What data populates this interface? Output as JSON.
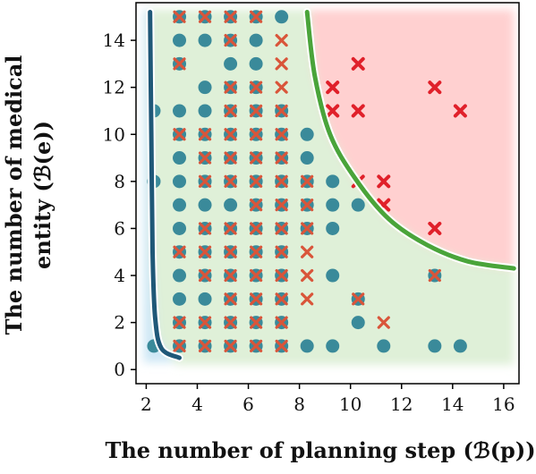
{
  "chart_data": {
    "type": "scatter",
    "xlabel": "The number of planning step (ℬ(p))",
    "ylabel_lines": [
      "The number of medical",
      "entity (ℬ(e))"
    ],
    "xlim": [
      1.6,
      16.6
    ],
    "ylim": [
      -0.6,
      15.6
    ],
    "x_ticks": [
      "2",
      "4",
      "6",
      "8",
      "10",
      "12",
      "14",
      "16"
    ],
    "y_ticks": [
      "0",
      "2",
      "4",
      "6",
      "8",
      "10",
      "12",
      "14"
    ],
    "grid": false,
    "legend": "none",
    "colors": {
      "circle": "#3a8a9a",
      "cross_light": "#d9553a",
      "cross_strong": "#e0202a",
      "region_green": "#dff0d8",
      "region_red": "#ffd0d0",
      "region_blue": "#cde7f5",
      "curve_green": "#4aa43a",
      "curve_blue": "#1f5878"
    },
    "regions": [
      {
        "color_key": "region_blue",
        "points": [
          [
            1.9,
            0.3
          ],
          [
            1.9,
            15.3
          ],
          [
            2.15,
            15.3
          ],
          [
            2.2,
            5
          ],
          [
            2.4,
            1.4
          ],
          [
            3.2,
            0.3
          ]
        ]
      },
      {
        "color_key": "region_green",
        "points": [
          [
            2.15,
            15.3
          ],
          [
            8.4,
            15.3
          ],
          [
            8.6,
            12.5
          ],
          [
            9.2,
            10
          ],
          [
            10.2,
            8.1
          ],
          [
            11.5,
            6.4
          ],
          [
            13,
            5.3
          ],
          [
            14.6,
            4.6
          ],
          [
            16.4,
            4.3
          ],
          [
            16.4,
            0.2
          ],
          [
            3.2,
            0.2
          ],
          [
            2.4,
            1.4
          ],
          [
            2.2,
            5
          ]
        ]
      },
      {
        "color_key": "region_red",
        "points": [
          [
            8.4,
            15.3
          ],
          [
            16.4,
            15.3
          ],
          [
            16.4,
            4.3
          ],
          [
            14.6,
            4.6
          ],
          [
            13,
            5.3
          ],
          [
            11.5,
            6.4
          ],
          [
            10.2,
            8.1
          ],
          [
            9.2,
            10
          ],
          [
            8.6,
            12.5
          ]
        ]
      }
    ],
    "curves": [
      {
        "color_key": "curve_blue",
        "points": [
          [
            2.15,
            15.2
          ],
          [
            2.2,
            10
          ],
          [
            2.25,
            5
          ],
          [
            2.35,
            2.2
          ],
          [
            2.6,
            0.9
          ],
          [
            3.3,
            0.5
          ]
        ]
      },
      {
        "color_key": "curve_green",
        "points": [
          [
            8.3,
            15.2
          ],
          [
            8.6,
            12.5
          ],
          [
            9.2,
            10
          ],
          [
            10.2,
            8.1
          ],
          [
            11.5,
            6.4
          ],
          [
            13,
            5.3
          ],
          [
            14.6,
            4.6
          ],
          [
            16.4,
            4.3
          ]
        ]
      }
    ],
    "series": [
      {
        "marker": "circle",
        "color_key": "circle",
        "points": [
          [
            3.3,
            15
          ],
          [
            4.3,
            15
          ],
          [
            5.3,
            15
          ],
          [
            6.3,
            15
          ],
          [
            7.3,
            15
          ],
          [
            3.3,
            14
          ],
          [
            4.3,
            14
          ],
          [
            5.3,
            14
          ],
          [
            6.3,
            14
          ],
          [
            3.3,
            13
          ],
          [
            5.3,
            13
          ],
          [
            6.3,
            13
          ],
          [
            4.3,
            12
          ],
          [
            5.3,
            12
          ],
          [
            6.3,
            12
          ],
          [
            2.3,
            11
          ],
          [
            3.3,
            11
          ],
          [
            4.3,
            11
          ],
          [
            5.3,
            11
          ],
          [
            6.3,
            11
          ],
          [
            7.3,
            11
          ],
          [
            3.3,
            10
          ],
          [
            4.3,
            10
          ],
          [
            5.3,
            10
          ],
          [
            6.3,
            10
          ],
          [
            7.3,
            10
          ],
          [
            8.3,
            10
          ],
          [
            3.3,
            9
          ],
          [
            4.3,
            9
          ],
          [
            5.3,
            9
          ],
          [
            6.3,
            9
          ],
          [
            7.3,
            9
          ],
          [
            8.3,
            9
          ],
          [
            2.3,
            8
          ],
          [
            3.3,
            8
          ],
          [
            4.3,
            8
          ],
          [
            5.3,
            8
          ],
          [
            6.3,
            8
          ],
          [
            7.3,
            8
          ],
          [
            8.3,
            8
          ],
          [
            9.3,
            8
          ],
          [
            3.3,
            7
          ],
          [
            4.3,
            7
          ],
          [
            5.3,
            7
          ],
          [
            6.3,
            7
          ],
          [
            7.3,
            7
          ],
          [
            8.3,
            7
          ],
          [
            9.3,
            7
          ],
          [
            10.3,
            7
          ],
          [
            3.3,
            6
          ],
          [
            4.3,
            6
          ],
          [
            5.3,
            6
          ],
          [
            6.3,
            6
          ],
          [
            7.3,
            6
          ],
          [
            8.3,
            6
          ],
          [
            9.3,
            6
          ],
          [
            3.3,
            5
          ],
          [
            4.3,
            5
          ],
          [
            5.3,
            5
          ],
          [
            6.3,
            5
          ],
          [
            7.3,
            5
          ],
          [
            3.3,
            4
          ],
          [
            4.3,
            4
          ],
          [
            5.3,
            4
          ],
          [
            6.3,
            4
          ],
          [
            7.3,
            4
          ],
          [
            9.3,
            4
          ],
          [
            13.3,
            4
          ],
          [
            3.3,
            3
          ],
          [
            4.3,
            3
          ],
          [
            5.3,
            3
          ],
          [
            6.3,
            3
          ],
          [
            7.3,
            3
          ],
          [
            10.3,
            3
          ],
          [
            3.3,
            2
          ],
          [
            4.3,
            2
          ],
          [
            5.3,
            2
          ],
          [
            6.3,
            2
          ],
          [
            7.3,
            2
          ],
          [
            10.3,
            2
          ],
          [
            2.3,
            1
          ],
          [
            3.3,
            1
          ],
          [
            4.3,
            1
          ],
          [
            5.3,
            1
          ],
          [
            6.3,
            1
          ],
          [
            7.3,
            1
          ],
          [
            8.3,
            1
          ],
          [
            9.3,
            1
          ],
          [
            11.3,
            1
          ],
          [
            13.3,
            1
          ],
          [
            14.3,
            1
          ]
        ]
      },
      {
        "marker": "cross",
        "color_key": "cross_light",
        "points": [
          [
            3.3,
            15
          ],
          [
            4.3,
            15
          ],
          [
            5.3,
            15
          ],
          [
            6.3,
            15
          ],
          [
            5.3,
            14
          ],
          [
            7.3,
            14
          ],
          [
            3.3,
            13
          ],
          [
            7.3,
            13
          ],
          [
            5.3,
            12
          ],
          [
            6.3,
            12
          ],
          [
            7.3,
            12
          ],
          [
            5.3,
            11
          ],
          [
            6.3,
            11
          ],
          [
            7.3,
            11
          ],
          [
            3.3,
            10
          ],
          [
            4.3,
            10
          ],
          [
            5.3,
            10
          ],
          [
            6.3,
            10
          ],
          [
            7.3,
            10
          ],
          [
            4.3,
            9
          ],
          [
            5.3,
            9
          ],
          [
            6.3,
            9
          ],
          [
            7.3,
            9
          ],
          [
            4.3,
            8
          ],
          [
            5.3,
            8
          ],
          [
            6.3,
            8
          ],
          [
            7.3,
            8
          ],
          [
            8.3,
            8
          ],
          [
            6.3,
            7
          ],
          [
            7.3,
            7
          ],
          [
            8.3,
            7
          ],
          [
            4.3,
            6
          ],
          [
            5.3,
            6
          ],
          [
            6.3,
            6
          ],
          [
            7.3,
            6
          ],
          [
            8.3,
            6
          ],
          [
            3.3,
            5
          ],
          [
            4.3,
            5
          ],
          [
            5.3,
            5
          ],
          [
            6.3,
            5
          ],
          [
            7.3,
            5
          ],
          [
            8.3,
            5
          ],
          [
            4.3,
            4
          ],
          [
            5.3,
            4
          ],
          [
            6.3,
            4
          ],
          [
            7.3,
            4
          ],
          [
            8.3,
            4
          ],
          [
            13.3,
            4
          ],
          [
            5.3,
            3
          ],
          [
            6.3,
            3
          ],
          [
            7.3,
            3
          ],
          [
            8.3,
            3
          ],
          [
            10.3,
            3
          ],
          [
            3.3,
            2
          ],
          [
            4.3,
            2
          ],
          [
            5.3,
            2
          ],
          [
            6.3,
            2
          ],
          [
            7.3,
            2
          ],
          [
            11.3,
            2
          ],
          [
            3.3,
            1
          ],
          [
            4.3,
            1
          ],
          [
            5.3,
            1
          ],
          [
            6.3,
            1
          ],
          [
            7.3,
            1
          ]
        ]
      },
      {
        "marker": "cross",
        "color_key": "cross_strong",
        "points": [
          [
            10.3,
            13
          ],
          [
            9.3,
            12
          ],
          [
            13.3,
            12
          ],
          [
            9.3,
            11
          ],
          [
            10.3,
            11
          ],
          [
            14.3,
            11
          ],
          [
            10.3,
            8
          ],
          [
            11.3,
            8
          ],
          [
            11.3,
            7
          ],
          [
            13.3,
            6
          ]
        ]
      }
    ]
  }
}
